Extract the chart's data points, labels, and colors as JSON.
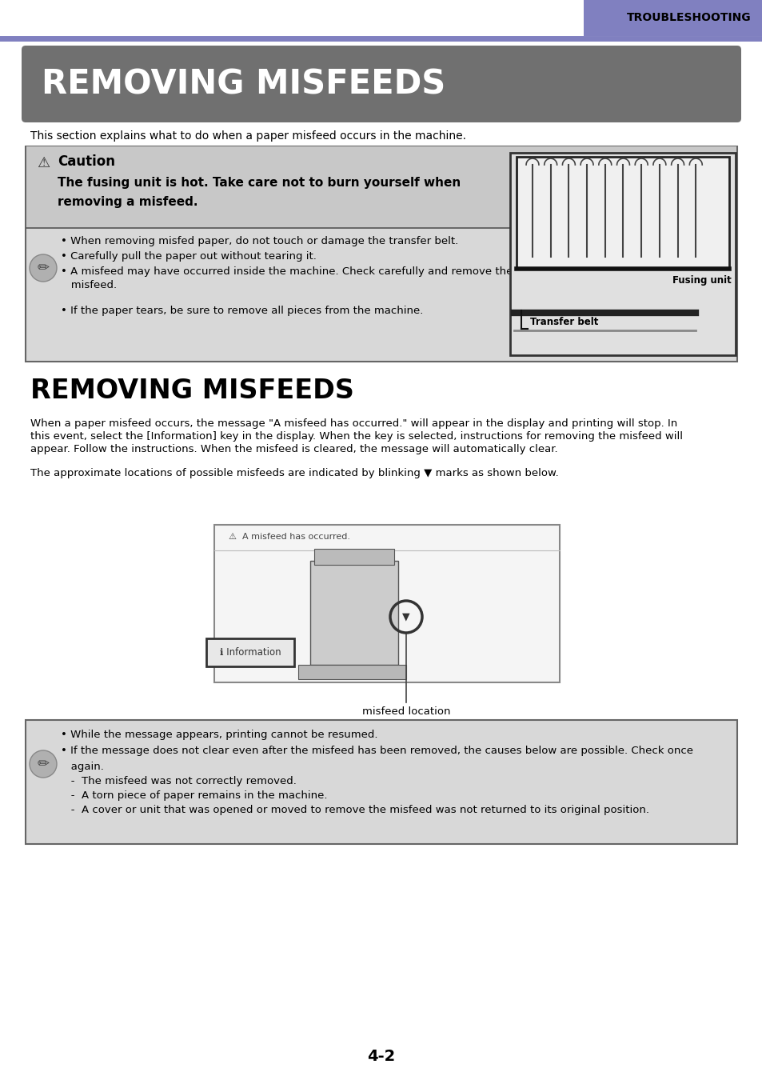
{
  "page_bg": "#ffffff",
  "header_bar_color": "#8080c0",
  "header_text": "TROUBLESHOOTING",
  "title_bg": "#707070",
  "title_text": "REMOVING MISFEEDS",
  "title_text_color": "#ffffff",
  "section_title": "REMOVING MISFEEDS",
  "intro_text": "This section explains what to do when a paper misfeed occurs in the machine.",
  "caution_box_bg": "#d8d8d8",
  "caution_upper_bg": "#c8c8c8",
  "caution_title": "Caution",
  "caution_bold_line1": "The fusing unit is hot. Take care not to burn yourself when",
  "caution_bold_line2": "removing a misfeed.",
  "note_bullets": [
    "• When removing misfed paper, do not touch or damage the transfer belt.",
    "• Carefully pull the paper out without tearing it.",
    "• A misfeed may have occurred inside the machine. Check carefully and remove the",
    "   misfeed.",
    "• If the paper tears, be sure to remove all pieces from the machine."
  ],
  "fusing_label": "Fusing unit",
  "transfer_label": "Transfer belt",
  "body_para1_line1": "When a paper misfeed occurs, the message \"A misfeed has occurred.\" will appear in the display and printing will stop. In",
  "body_para1_line2": "this event, select the [Information] key in the display. When the key is selected, instructions for removing the misfeed will",
  "body_para1_line3": "appear. Follow the instructions. When the misfeed is cleared, the message will automatically clear.",
  "body_para2": "The approximate locations of possible misfeeds are indicated by blinking ▼ marks as shown below.",
  "misfeed_label": "misfeed location",
  "bottom_note_line1": "• While the message appears, printing cannot be resumed.",
  "bottom_note_line2": "• If the message does not clear even after the misfeed has been removed, the causes below are possible. Check once",
  "bottom_note_line2b": "   again.",
  "bottom_note_line3": "   -  The misfeed was not correctly removed.",
  "bottom_note_line4": "   -  A torn piece of paper remains in the machine.",
  "bottom_note_line5": "   -  A cover or unit that was opened or moved to remove the misfeed was not returned to its original position.",
  "page_number": "4-2"
}
